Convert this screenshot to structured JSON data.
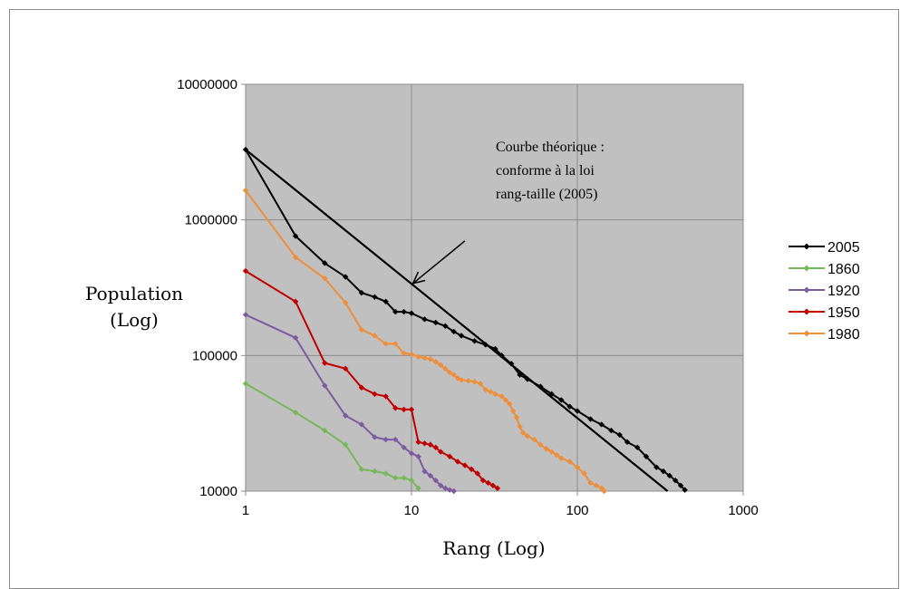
{
  "chart_data": {
    "type": "line",
    "log_x": true,
    "log_y": true,
    "xlim": [
      1,
      1000
    ],
    "ylim": [
      10000,
      10000000
    ],
    "x_ticks": [
      "1",
      "10",
      "100",
      "1000"
    ],
    "y_ticks": [
      "10000",
      "100000",
      "1000000",
      "10000000"
    ],
    "ylabel_lines": [
      "Population",
      "(Log)"
    ],
    "xlabel": "Rang (Log)",
    "grid": true,
    "plot_background": "#c0c0c0",
    "legend_position": "right",
    "series": [
      {
        "name": "2005",
        "color": "#000000",
        "points": [
          [
            1,
            3300000
          ],
          [
            2,
            760000
          ],
          [
            3,
            480000
          ],
          [
            4,
            380000
          ],
          [
            5,
            290000
          ],
          [
            6,
            270000
          ],
          [
            7,
            250000
          ],
          [
            8,
            210000
          ],
          [
            9,
            210000
          ],
          [
            10,
            205000
          ],
          [
            12,
            185000
          ],
          [
            14,
            175000
          ],
          [
            16,
            165000
          ],
          [
            18,
            150000
          ],
          [
            20,
            140000
          ],
          [
            24,
            128000
          ],
          [
            28,
            120000
          ],
          [
            32,
            112000
          ],
          [
            35,
            100000
          ],
          [
            40,
            87000
          ],
          [
            45,
            72000
          ],
          [
            50,
            67000
          ],
          [
            60,
            59000
          ],
          [
            70,
            52000
          ],
          [
            80,
            47000
          ],
          [
            90,
            42000
          ],
          [
            100,
            39000
          ],
          [
            120,
            34000
          ],
          [
            140,
            31000
          ],
          [
            160,
            28000
          ],
          [
            180,
            26000
          ],
          [
            200,
            23000
          ],
          [
            230,
            21000
          ],
          [
            260,
            18000
          ],
          [
            300,
            15000
          ],
          [
            330,
            14000
          ],
          [
            360,
            13000
          ],
          [
            390,
            12000
          ],
          [
            420,
            11000
          ],
          [
            445,
            10200
          ]
        ]
      },
      {
        "name": "1860",
        "color": "#77b85a",
        "points": [
          [
            1,
            62000
          ],
          [
            2,
            38000
          ],
          [
            3,
            28000
          ],
          [
            4,
            22000
          ],
          [
            5,
            14500
          ],
          [
            6,
            14000
          ],
          [
            7,
            13500
          ],
          [
            8,
            12500
          ],
          [
            9,
            12500
          ],
          [
            10,
            12000
          ],
          [
            11,
            10500
          ]
        ]
      },
      {
        "name": "1920",
        "color": "#7c5c9e",
        "points": [
          [
            1,
            200000
          ],
          [
            2,
            135000
          ],
          [
            3,
            60000
          ],
          [
            4,
            36000
          ],
          [
            5,
            31000
          ],
          [
            6,
            25000
          ],
          [
            7,
            24000
          ],
          [
            8,
            24000
          ],
          [
            9,
            21000
          ],
          [
            10,
            19000
          ],
          [
            11,
            18000
          ],
          [
            12,
            14000
          ],
          [
            13,
            13000
          ],
          [
            14,
            12000
          ],
          [
            15,
            11000
          ],
          [
            16,
            10500
          ],
          [
            17,
            10200
          ],
          [
            18,
            10000
          ]
        ]
      },
      {
        "name": "1950",
        "color": "#c00000",
        "points": [
          [
            1,
            420000
          ],
          [
            2,
            250000
          ],
          [
            3,
            88000
          ],
          [
            4,
            80000
          ],
          [
            5,
            58000
          ],
          [
            6,
            52000
          ],
          [
            7,
            50000
          ],
          [
            8,
            41000
          ],
          [
            9,
            40000
          ],
          [
            10,
            40000
          ],
          [
            11,
            23000
          ],
          [
            12,
            22500
          ],
          [
            13,
            22000
          ],
          [
            14,
            21000
          ],
          [
            15,
            19500
          ],
          [
            17,
            18000
          ],
          [
            19,
            16500
          ],
          [
            21,
            15500
          ],
          [
            23,
            14500
          ],
          [
            25,
            13500
          ],
          [
            27,
            12000
          ],
          [
            29,
            11500
          ],
          [
            31,
            11000
          ],
          [
            33,
            10500
          ]
        ]
      },
      {
        "name": "1980",
        "color": "#ed8f3b",
        "points": [
          [
            1,
            1650000
          ],
          [
            2,
            530000
          ],
          [
            3,
            370000
          ],
          [
            4,
            245000
          ],
          [
            5,
            155000
          ],
          [
            6,
            140000
          ],
          [
            7,
            122000
          ],
          [
            8,
            122000
          ],
          [
            9,
            104000
          ],
          [
            10,
            102000
          ],
          [
            11,
            98000
          ],
          [
            12,
            96000
          ],
          [
            13,
            94000
          ],
          [
            14,
            90000
          ],
          [
            15,
            85000
          ],
          [
            16,
            80000
          ],
          [
            17,
            75000
          ],
          [
            18,
            72000
          ],
          [
            19,
            68000
          ],
          [
            20,
            66000
          ],
          [
            22,
            65000
          ],
          [
            24,
            64000
          ],
          [
            26,
            62000
          ],
          [
            28,
            56000
          ],
          [
            30,
            54000
          ],
          [
            32,
            52000
          ],
          [
            35,
            50000
          ],
          [
            37,
            47000
          ],
          [
            39,
            44000
          ],
          [
            41,
            39000
          ],
          [
            43,
            35000
          ],
          [
            45,
            30000
          ],
          [
            47,
            27000
          ],
          [
            50,
            25500
          ],
          [
            55,
            24000
          ],
          [
            60,
            22000
          ],
          [
            65,
            20500
          ],
          [
            70,
            19500
          ],
          [
            75,
            18500
          ],
          [
            80,
            17500
          ],
          [
            90,
            16500
          ],
          [
            100,
            15000
          ],
          [
            110,
            13500
          ],
          [
            120,
            11500
          ],
          [
            130,
            11000
          ],
          [
            140,
            10500
          ],
          [
            145,
            10000
          ]
        ]
      }
    ],
    "theoretical_line": {
      "color": "#000000",
      "points": [
        [
          1,
          3300000
        ],
        [
          350,
          10000
        ]
      ]
    },
    "annotation": {
      "lines": [
        "Courbe théorique :",
        "conforme à la loi",
        "rang-taille (2005)"
      ],
      "arrow_tail": [
        21,
        700000
      ],
      "arrow_head": [
        10.2,
        340000
      ]
    }
  }
}
